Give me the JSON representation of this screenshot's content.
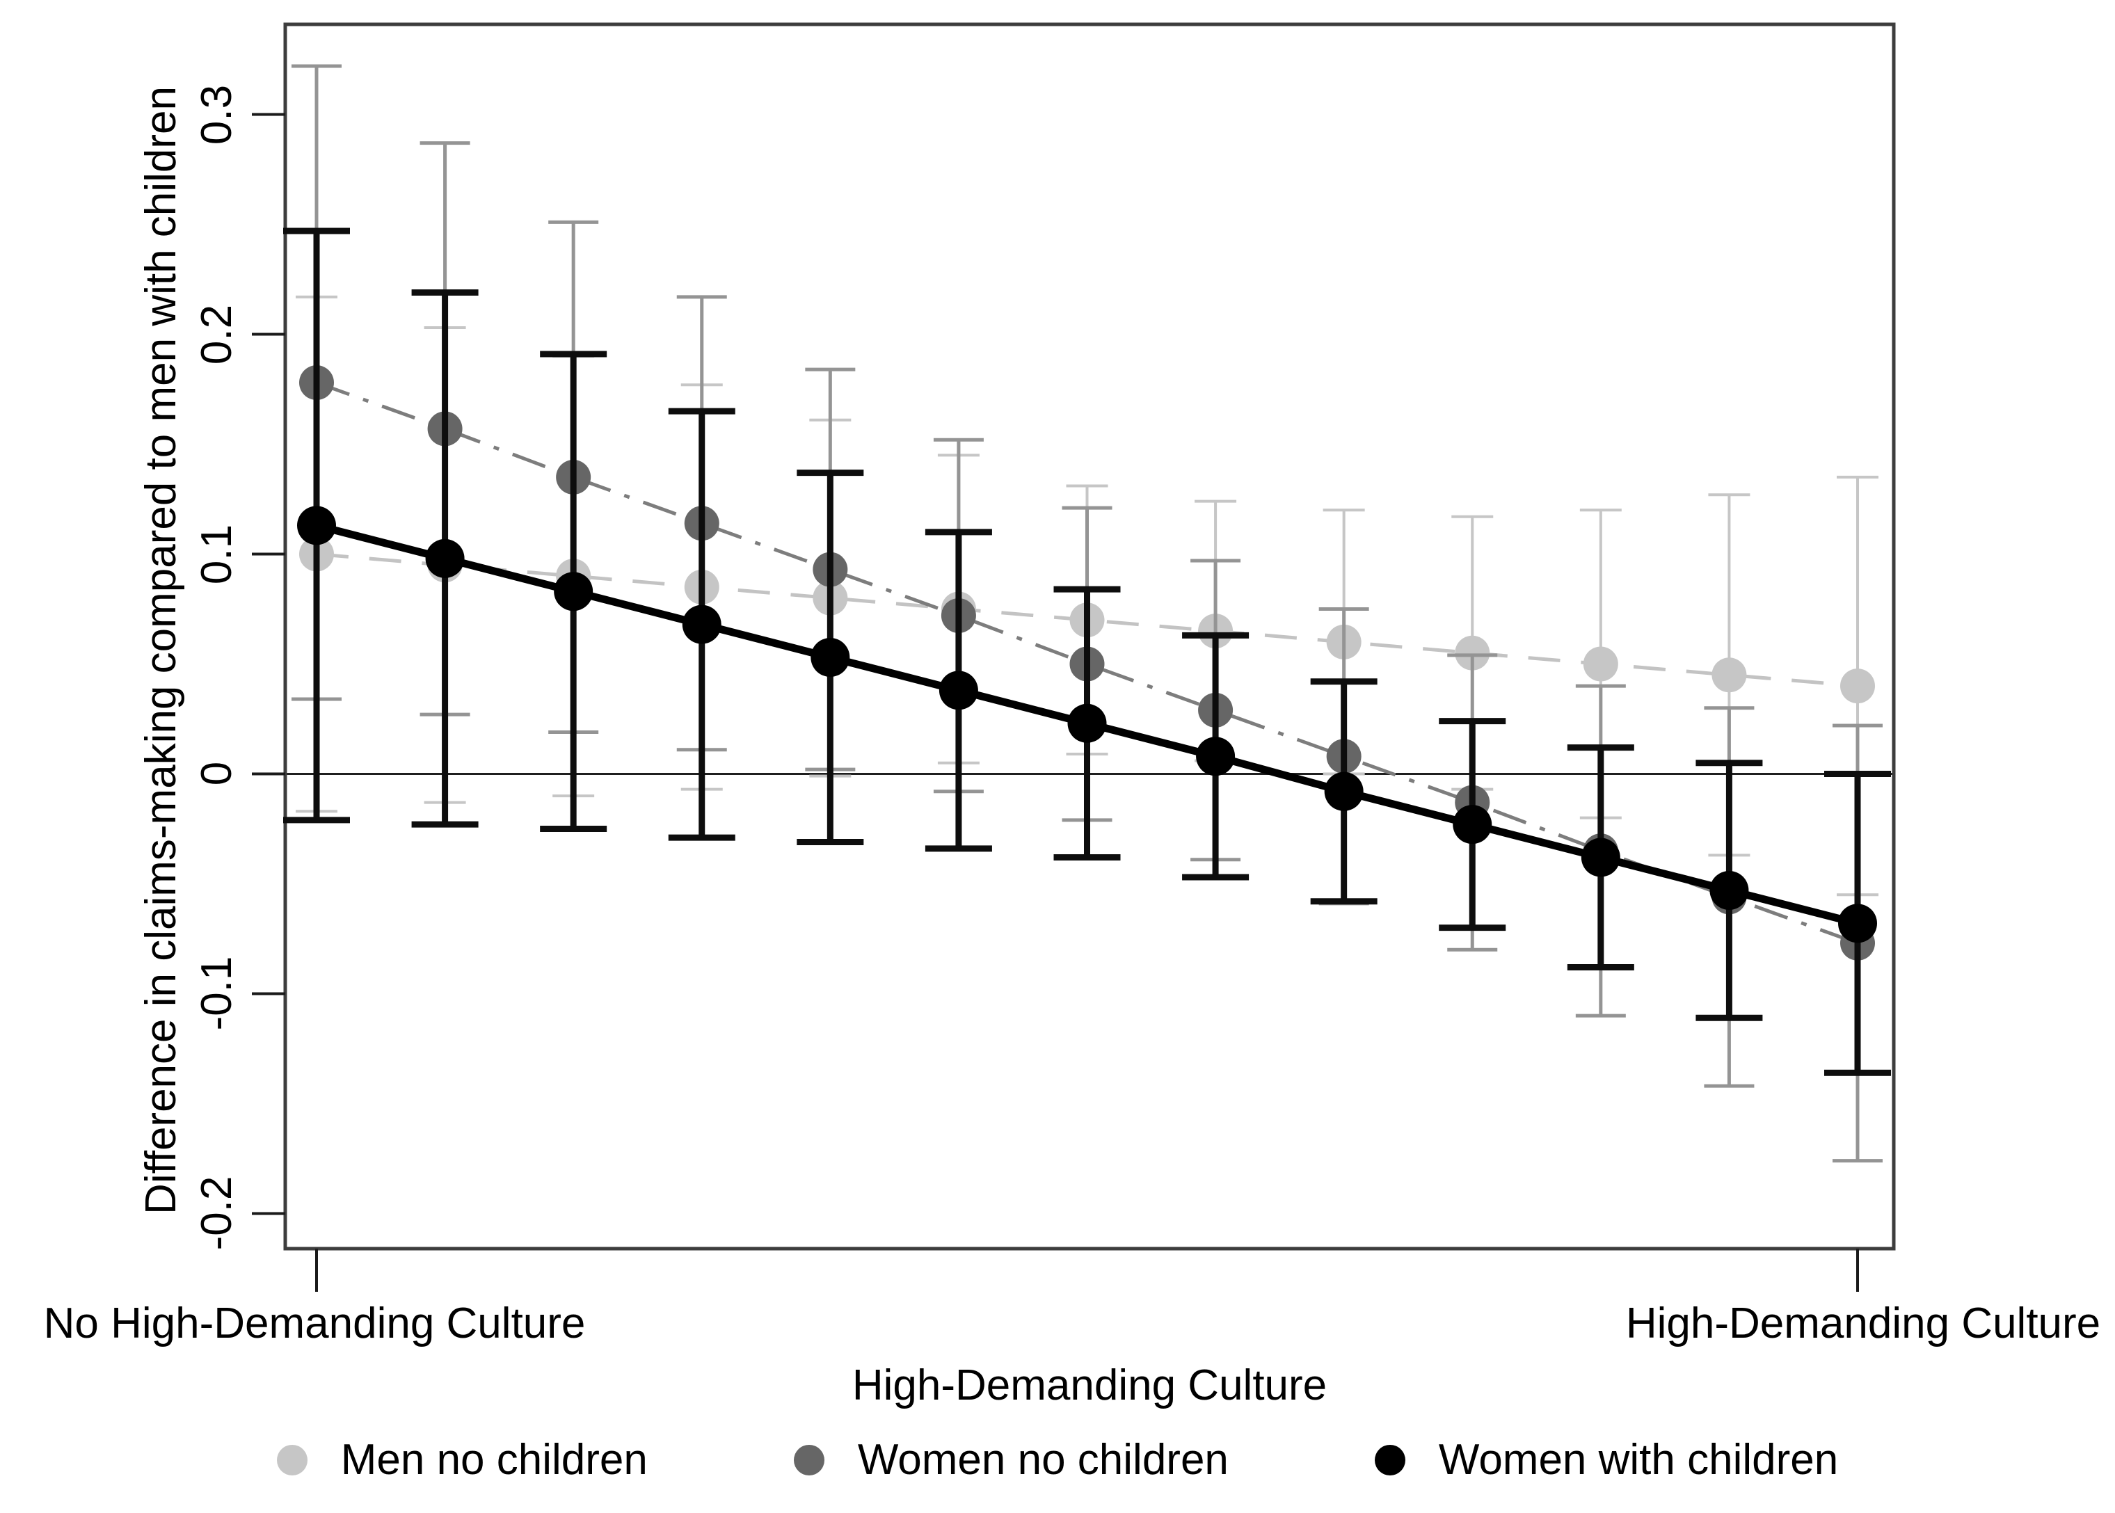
{
  "chart_data": {
    "type": "line",
    "title": "",
    "xlabel": "High-Demanding Culture",
    "ylabel": "Difference in claims-making compared to men with children",
    "x_tick_labels": [
      "No High-Demanding Culture",
      "High-Demanding Culture"
    ],
    "y_ticks": [
      0.3,
      0.2,
      0.1,
      0,
      -0.1,
      -0.2
    ],
    "y_tick_labels": [
      "0.3",
      "0.2",
      "0.1",
      "0",
      "-0.1",
      "-0.2"
    ],
    "ylim": [
      -0.216,
      0.341
    ],
    "n_points": 13,
    "grid": false,
    "zero_line": true,
    "legend_position": "bottom",
    "axis_color": "#3d3d3d",
    "zero_line_color": "#1f1f1f",
    "tick_color": "#1a1a1a",
    "series": [
      {
        "name": "Men no children",
        "marker_color": "#c6c6c6",
        "err_color": "#c6c6c6",
        "line_color": "#c3c3c3",
        "line_style": "dash",
        "values": [
          0.1,
          0.095,
          0.09,
          0.085,
          0.08,
          0.075,
          0.07,
          0.065,
          0.06,
          0.055,
          0.05,
          0.045,
          0.04
        ],
        "ci_low": [
          -0.017,
          -0.013,
          -0.01,
          -0.007,
          -0.001,
          0.005,
          0.009,
          0.006,
          0.0,
          -0.007,
          -0.02,
          -0.037,
          -0.055
        ],
        "ci_high": [
          0.217,
          0.203,
          0.19,
          0.177,
          0.161,
          0.145,
          0.131,
          0.124,
          0.12,
          0.117,
          0.12,
          0.127,
          0.135
        ]
      },
      {
        "name": "Women no children",
        "marker_color": "#666666",
        "err_color": "#949494",
        "line_color": "#7d7d7d",
        "line_style": "dash-dot",
        "values": [
          0.178,
          0.157,
          0.135,
          0.114,
          0.093,
          0.072,
          0.05,
          0.029,
          0.008,
          -0.013,
          -0.035,
          -0.056,
          -0.077
        ],
        "ci_low": [
          0.034,
          0.027,
          0.019,
          0.011,
          0.002,
          -0.008,
          -0.021,
          -0.039,
          -0.059,
          -0.08,
          -0.11,
          -0.142,
          -0.176
        ],
        "ci_high": [
          0.322,
          0.287,
          0.251,
          0.217,
          0.184,
          0.152,
          0.121,
          0.097,
          0.075,
          0.054,
          0.04,
          0.03,
          0.022
        ]
      },
      {
        "name": "Women with children",
        "marker_color": "#000000",
        "err_color": "#0d0d0d",
        "line_color": "#000000",
        "line_style": "solid",
        "values": [
          0.113,
          0.098,
          0.083,
          0.068,
          0.053,
          0.038,
          0.023,
          0.008,
          -0.008,
          -0.023,
          -0.038,
          -0.053,
          -0.068
        ],
        "ci_low": [
          -0.021,
          -0.023,
          -0.025,
          -0.029,
          -0.031,
          -0.034,
          -0.038,
          -0.047,
          -0.058,
          -0.07,
          -0.088,
          -0.111,
          -0.136
        ],
        "ci_high": [
          0.247,
          0.219,
          0.191,
          0.165,
          0.137,
          0.11,
          0.084,
          0.063,
          0.042,
          0.024,
          0.012,
          0.005,
          0.0
        ]
      }
    ]
  }
}
